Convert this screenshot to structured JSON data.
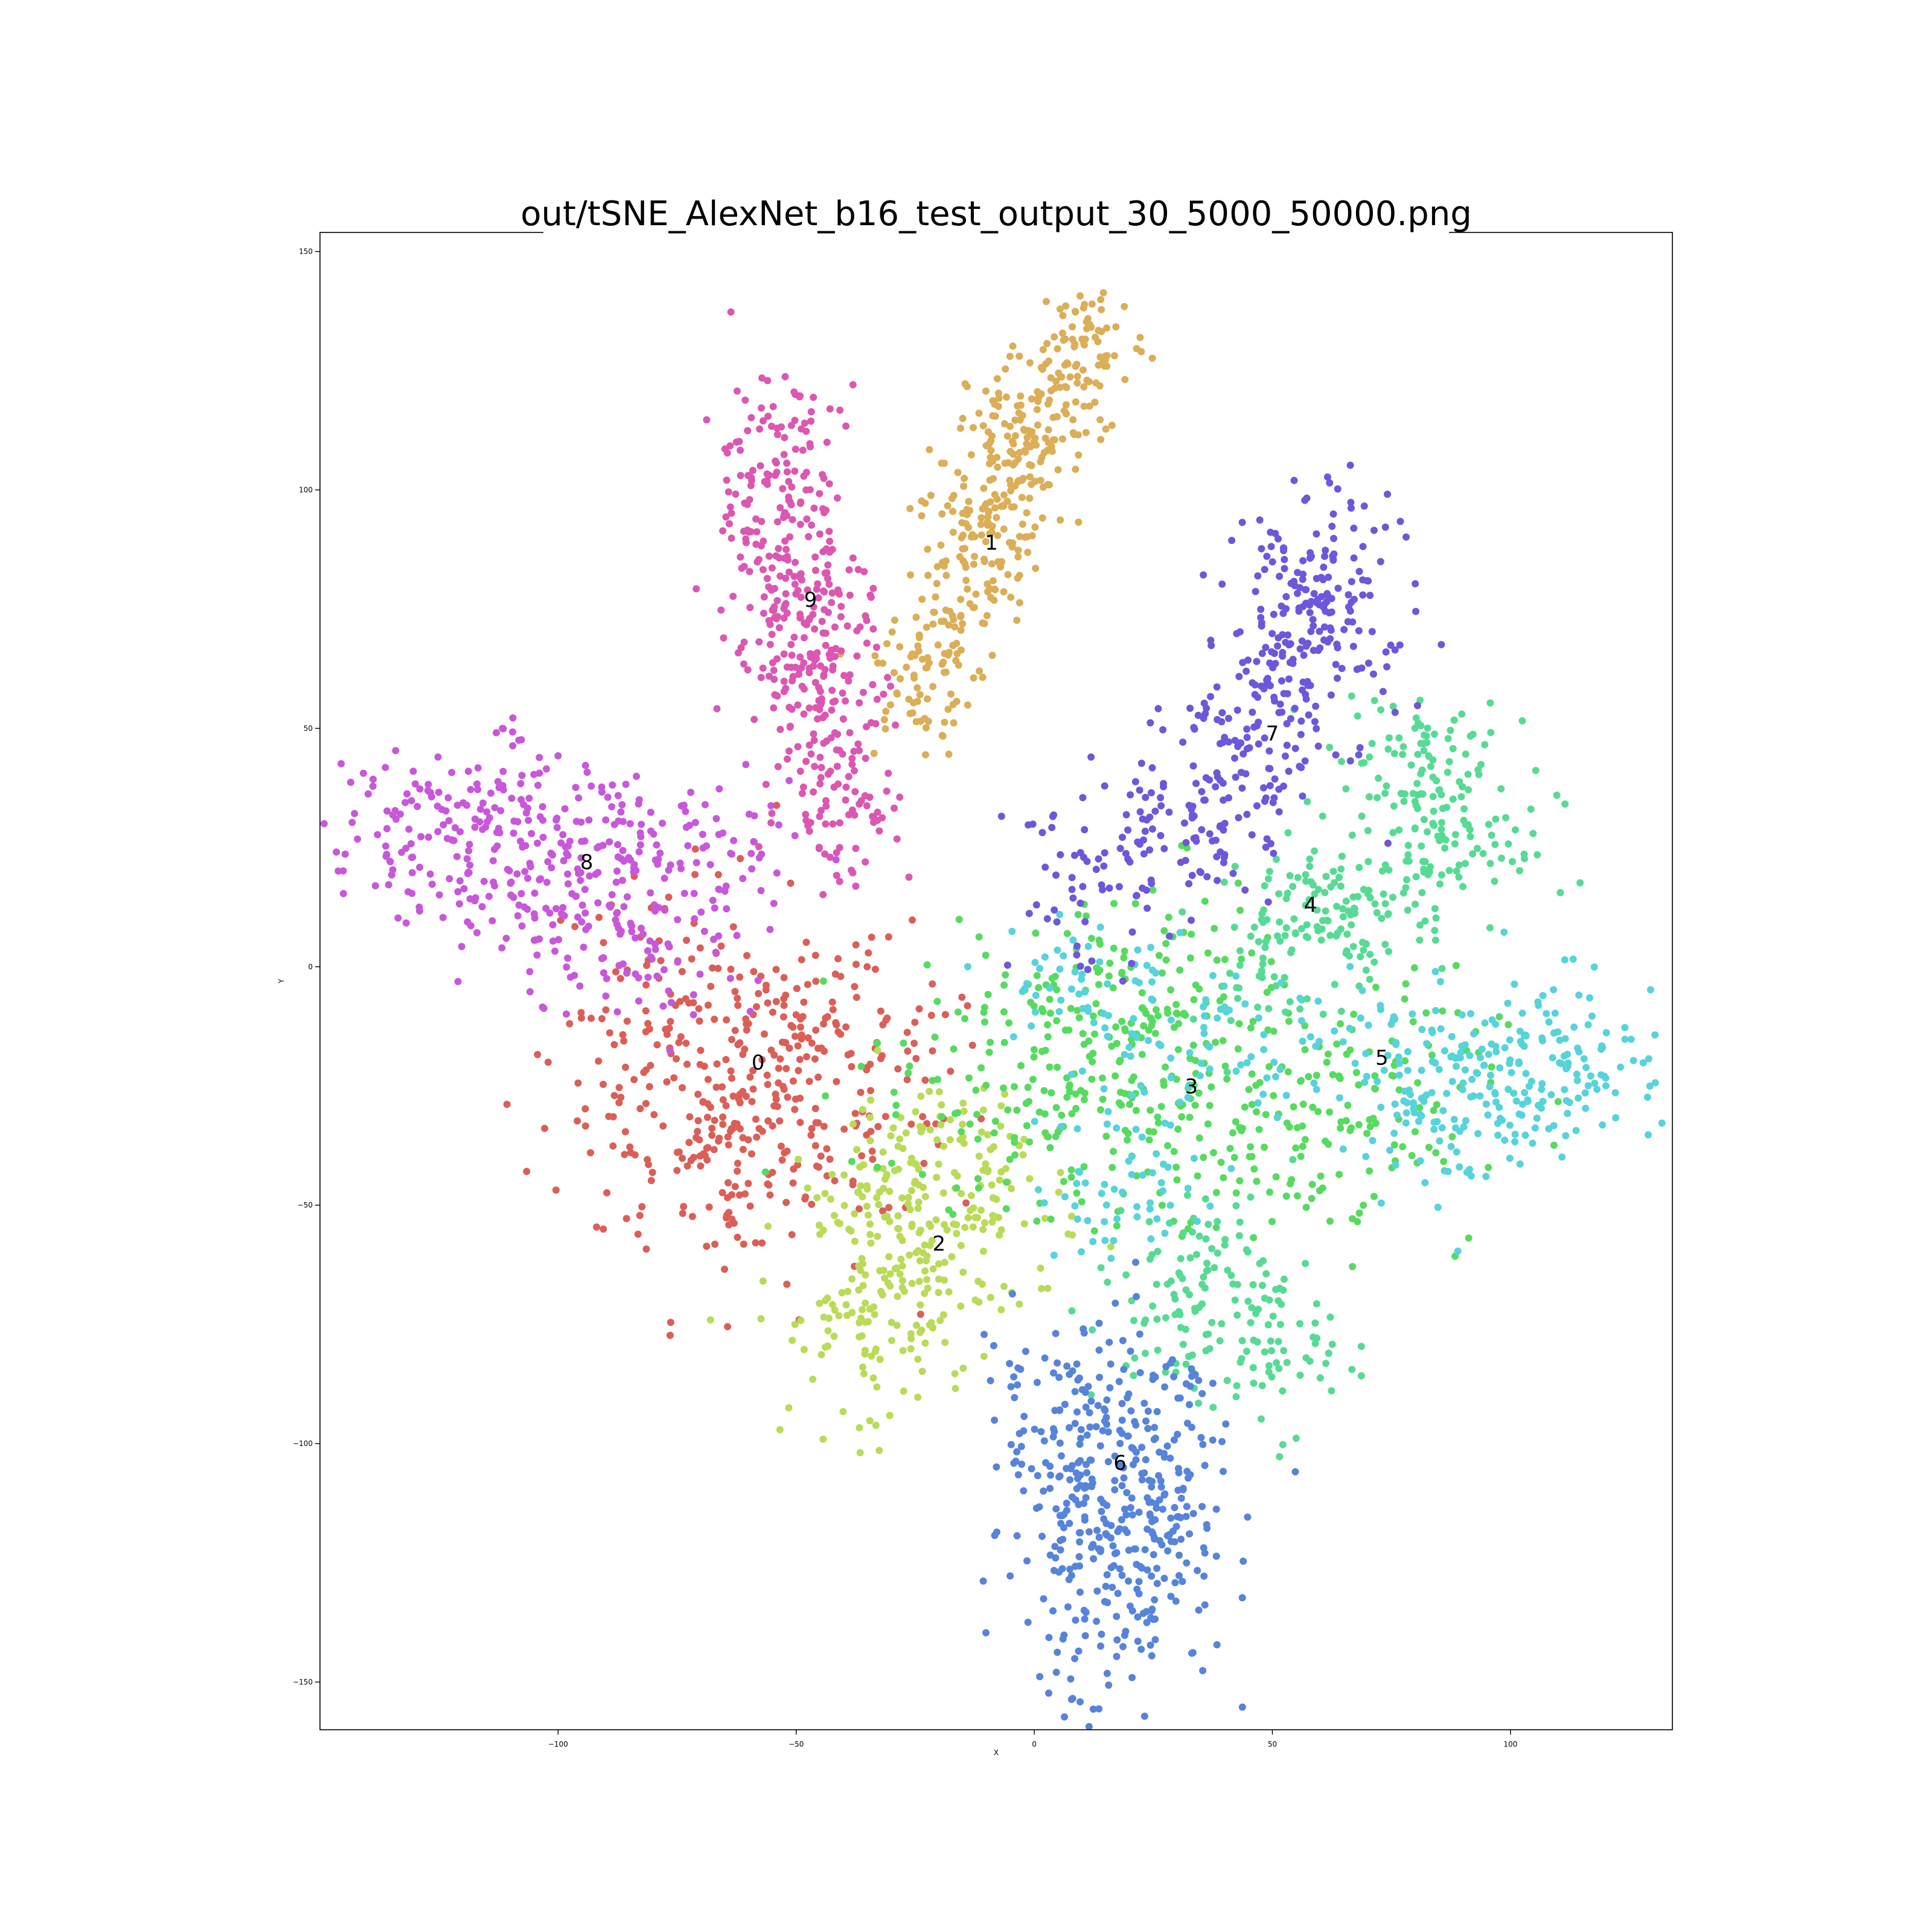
{
  "chart_data": {
    "type": "scatter",
    "title": "out/tSNE_AlexNet_b16_test_output_30_5000_50000.png",
    "xlabel": "X",
    "ylabel": "Y",
    "xlim": [
      -150,
      134
    ],
    "ylim": [
      -160,
      154
    ],
    "xticks": [
      -100,
      -50,
      0,
      50,
      100
    ],
    "yticks": [
      -150,
      -100,
      -50,
      0,
      50,
      100,
      150
    ],
    "xtick_labels": [
      "−100",
      "−50",
      "0",
      "50",
      "100"
    ],
    "ytick_labels": [
      "−150",
      "−100",
      "−50",
      "0",
      "50",
      "100",
      "150"
    ],
    "grid": false,
    "legend": "none",
    "clusters": [
      {
        "label": "0",
        "color": "#db5f57",
        "label_pos": [
          -58,
          -20
        ],
        "points": [
          [
            -58,
            -20
          ],
          [
            -80,
            -22
          ],
          [
            -70,
            -35
          ],
          [
            -62,
            -45
          ],
          [
            -50,
            -28
          ],
          [
            -75,
            -8
          ],
          [
            -48,
            -12
          ],
          [
            -35,
            -28
          ]
        ],
        "spread": [
          14,
          14
        ]
      },
      {
        "label": "1",
        "color": "#dbae57",
        "label_pos": [
          -9,
          89
        ],
        "points": [
          [
            -9,
            89
          ],
          [
            -5,
            105
          ],
          [
            5,
            120
          ],
          [
            12,
            132
          ],
          [
            -18,
            72
          ],
          [
            -25,
            58
          ],
          [
            -12,
            95
          ],
          [
            -2,
            112
          ]
        ],
        "spread": [
          6,
          7
        ]
      },
      {
        "label": "2",
        "color": "#b9db57",
        "label_pos": [
          -20,
          -58
        ],
        "points": [
          [
            -20,
            -58
          ],
          [
            -38,
            -78
          ],
          [
            -28,
            -70
          ],
          [
            -10,
            -48
          ],
          [
            -32,
            -52
          ],
          [
            -22,
            -40
          ]
        ],
        "spread": [
          10,
          10
        ]
      },
      {
        "label": "3",
        "color": "#57db5f",
        "label_pos": [
          33,
          -25
        ],
        "points": [
          [
            33,
            -25
          ],
          [
            20,
            -10
          ],
          [
            5,
            -20
          ],
          [
            45,
            -30
          ],
          [
            65,
            -35
          ],
          [
            70,
            -25
          ],
          [
            10,
            -40
          ],
          [
            -10,
            -25
          ],
          [
            25,
            0
          ]
        ],
        "spread": [
          14,
          12
        ]
      },
      {
        "label": "4",
        "color": "#57db94",
        "label_pos": [
          58,
          13
        ],
        "points": [
          [
            58,
            13
          ],
          [
            85,
            35
          ],
          [
            90,
            25
          ],
          [
            70,
            15
          ],
          [
            50,
            5
          ],
          [
            40,
            -65
          ],
          [
            30,
            -75
          ],
          [
            50,
            -80
          ],
          [
            80,
            45
          ]
        ],
        "spread": [
          9,
          9
        ]
      },
      {
        "label": "5",
        "color": "#57d3db",
        "label_pos": [
          73,
          -19
        ],
        "points": [
          [
            73,
            -19
          ],
          [
            95,
            -25
          ],
          [
            105,
            -20
          ],
          [
            115,
            -18
          ],
          [
            88,
            -32
          ],
          [
            20,
            -45
          ],
          [
            35,
            -15
          ],
          [
            10,
            -5
          ]
        ],
        "spread": [
          10,
          9
        ]
      },
      {
        "label": "6",
        "color": "#5784db",
        "label_pos": [
          18,
          -104
        ],
        "points": [
          [
            18,
            -104
          ],
          [
            15,
            -120
          ],
          [
            20,
            -130
          ],
          [
            10,
            -110
          ],
          [
            25,
            -95
          ],
          [
            5,
            -90
          ],
          [
            28,
            -112
          ],
          [
            15,
            -138
          ]
        ],
        "spread": [
          9,
          10
        ]
      },
      {
        "label": "7",
        "color": "#6e57db",
        "label_pos": [
          50,
          49
        ],
        "points": [
          [
            50,
            49
          ],
          [
            55,
            75
          ],
          [
            60,
            85
          ],
          [
            40,
            35
          ],
          [
            30,
            28
          ],
          [
            48,
            60
          ],
          [
            65,
            70
          ],
          [
            10,
            18
          ]
        ],
        "spread": [
          8,
          10
        ]
      },
      {
        "label": "8",
        "color": "#c957db",
        "label_pos": [
          -94,
          22
        ],
        "points": [
          [
            -94,
            22
          ],
          [
            -120,
            30
          ],
          [
            -130,
            25
          ],
          [
            -105,
            18
          ],
          [
            -80,
            15
          ],
          [
            -85,
            5
          ],
          [
            -110,
            35
          ],
          [
            -70,
            25
          ]
        ],
        "spread": [
          12,
          9
        ]
      },
      {
        "label": "9",
        "color": "#db57b2",
        "label_pos": [
          -47,
          77
        ],
        "points": [
          [
            -47,
            77
          ],
          [
            -55,
            110
          ],
          [
            -52,
            95
          ],
          [
            -58,
            85
          ],
          [
            -45,
            60
          ],
          [
            -42,
            45
          ],
          [
            -50,
            70
          ],
          [
            -40,
            35
          ]
        ],
        "spread": [
          7,
          9
        ]
      }
    ]
  }
}
